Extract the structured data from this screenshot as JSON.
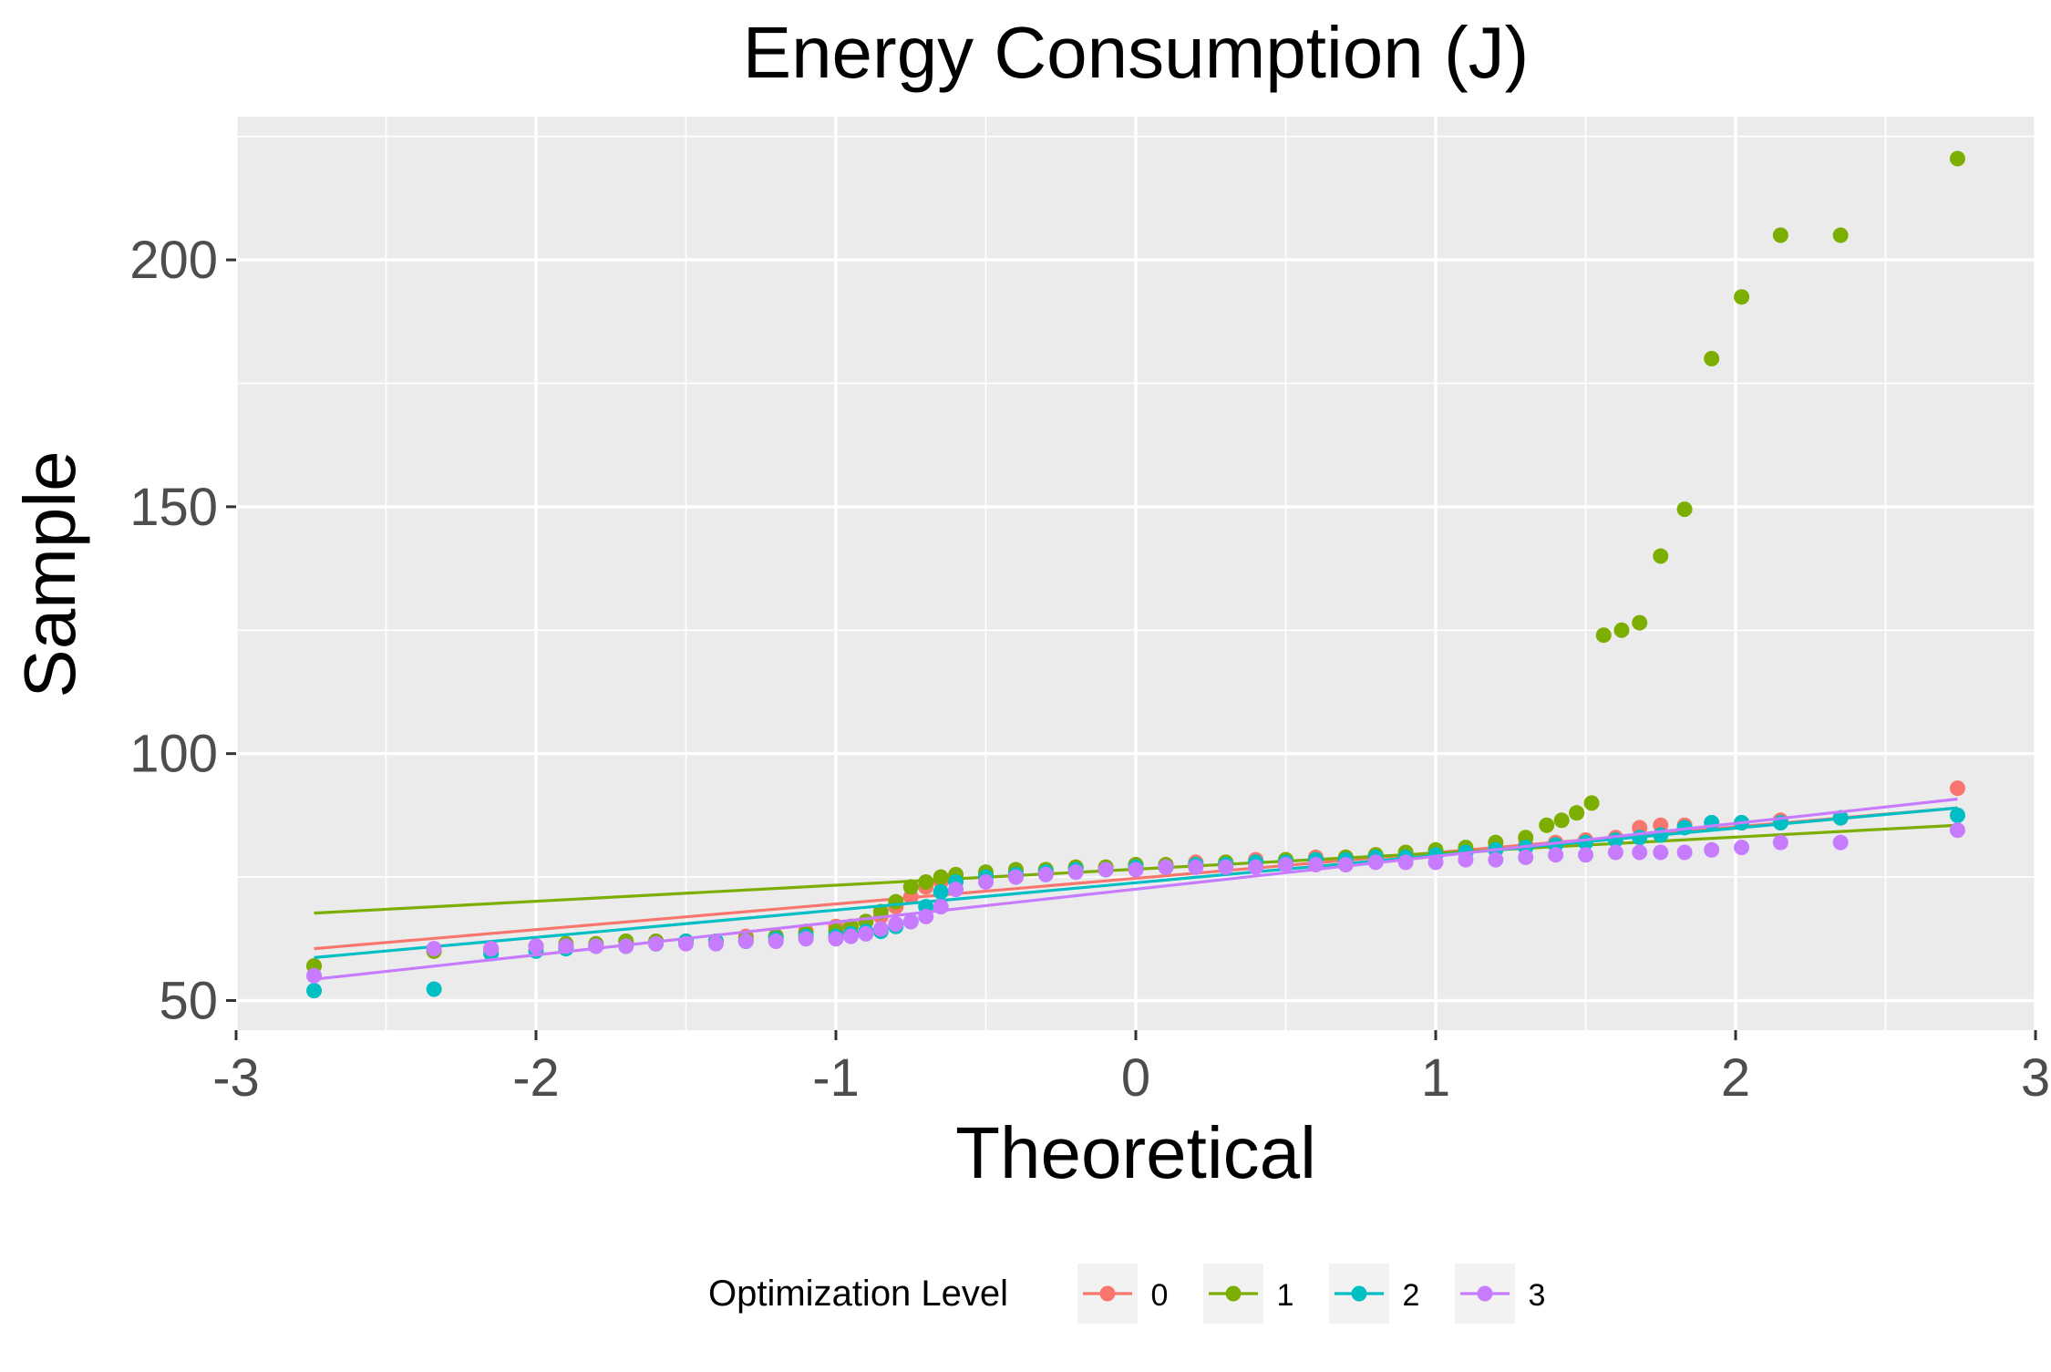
{
  "chart_data": {
    "type": "scatter",
    "title": "Energy Consumption (J)",
    "xlabel": "Theoretical",
    "ylabel": "Sample",
    "xlim": [
      -3,
      3
    ],
    "ylim": [
      44,
      229
    ],
    "x_ticks": [
      -3,
      -2,
      -1,
      0,
      1,
      2,
      3
    ],
    "y_ticks": [
      50,
      100,
      150,
      200
    ],
    "grid": true,
    "legend": {
      "title": "Optimization Level",
      "position": "bottom"
    },
    "series": [
      {
        "name": "0",
        "color": "#F8766D",
        "line": [
          [
            -2.74,
            60.5
          ],
          [
            2.74,
            89.0
          ]
        ],
        "points": [
          [
            -2.74,
            57
          ],
          [
            -2.34,
            60
          ],
          [
            -2.15,
            60
          ],
          [
            -2.0,
            61
          ],
          [
            -1.9,
            61
          ],
          [
            -1.8,
            61
          ],
          [
            -1.7,
            62
          ],
          [
            -1.6,
            62
          ],
          [
            -1.5,
            62
          ],
          [
            -1.4,
            62
          ],
          [
            -1.3,
            63
          ],
          [
            -1.2,
            63
          ],
          [
            -1.1,
            64
          ],
          [
            -1.0,
            65
          ],
          [
            -0.95,
            65
          ],
          [
            -0.9,
            66
          ],
          [
            -0.85,
            67
          ],
          [
            -0.8,
            69
          ],
          [
            -0.75,
            71
          ],
          [
            -0.7,
            73
          ],
          [
            -0.65,
            74
          ],
          [
            -0.6,
            75
          ],
          [
            -0.5,
            75.5
          ],
          [
            -0.4,
            76
          ],
          [
            -0.3,
            76.5
          ],
          [
            -0.2,
            77
          ],
          [
            -0.1,
            77
          ],
          [
            0.0,
            77.5
          ],
          [
            0.1,
            77.5
          ],
          [
            0.2,
            78
          ],
          [
            0.3,
            78
          ],
          [
            0.4,
            78.5
          ],
          [
            0.5,
            78.5
          ],
          [
            0.6,
            79
          ],
          [
            0.7,
            79
          ],
          [
            0.8,
            79.5
          ],
          [
            0.9,
            79.5
          ],
          [
            1.0,
            80
          ],
          [
            1.1,
            80.5
          ],
          [
            1.2,
            81
          ],
          [
            1.3,
            81.5
          ],
          [
            1.4,
            82
          ],
          [
            1.5,
            82.5
          ],
          [
            1.6,
            83
          ],
          [
            1.68,
            85
          ],
          [
            1.75,
            85.5
          ],
          [
            1.83,
            85.5
          ],
          [
            1.92,
            86
          ],
          [
            2.02,
            86
          ],
          [
            2.15,
            86.5
          ],
          [
            2.35,
            87
          ],
          [
            2.74,
            93
          ]
        ]
      },
      {
        "name": "1",
        "color": "#7CAE00",
        "line": [
          [
            -2.74,
            67.7
          ],
          [
            2.74,
            85.5
          ]
        ],
        "points": [
          [
            -2.74,
            57
          ],
          [
            -2.34,
            60
          ],
          [
            -2.15,
            60.5
          ],
          [
            -2.0,
            61
          ],
          [
            -1.9,
            61.5
          ],
          [
            -1.8,
            61.5
          ],
          [
            -1.7,
            62
          ],
          [
            -1.6,
            62
          ],
          [
            -1.5,
            62
          ],
          [
            -1.4,
            62
          ],
          [
            -1.3,
            62.5
          ],
          [
            -1.2,
            63
          ],
          [
            -1.1,
            63.5
          ],
          [
            -1.0,
            64
          ],
          [
            -0.95,
            65
          ],
          [
            -0.9,
            66
          ],
          [
            -0.85,
            68
          ],
          [
            -0.8,
            70
          ],
          [
            -0.75,
            73
          ],
          [
            -0.7,
            74
          ],
          [
            -0.65,
            75
          ],
          [
            -0.6,
            75.5
          ],
          [
            -0.5,
            76
          ],
          [
            -0.4,
            76.5
          ],
          [
            -0.3,
            76.5
          ],
          [
            -0.2,
            77
          ],
          [
            -0.1,
            77
          ],
          [
            0.0,
            77.5
          ],
          [
            0.1,
            77.5
          ],
          [
            0.2,
            77.5
          ],
          [
            0.3,
            78
          ],
          [
            0.4,
            78
          ],
          [
            0.5,
            78.5
          ],
          [
            0.6,
            78.5
          ],
          [
            0.7,
            79
          ],
          [
            0.8,
            79.5
          ],
          [
            0.9,
            80
          ],
          [
            1.0,
            80.5
          ],
          [
            1.1,
            81
          ],
          [
            1.2,
            82
          ],
          [
            1.3,
            83
          ],
          [
            1.37,
            85.5
          ],
          [
            1.42,
            86.5
          ],
          [
            1.47,
            88
          ],
          [
            1.52,
            90
          ],
          [
            1.56,
            124
          ],
          [
            1.62,
            125
          ],
          [
            1.68,
            126.5
          ],
          [
            1.75,
            140
          ],
          [
            1.83,
            149.5
          ],
          [
            1.92,
            180
          ],
          [
            2.02,
            192.5
          ],
          [
            2.15,
            205
          ],
          [
            2.35,
            205
          ],
          [
            2.74,
            220.5
          ]
        ]
      },
      {
        "name": "2",
        "color": "#00BFC4",
        "line": [
          [
            -2.74,
            58.7
          ],
          [
            2.74,
            89.0
          ]
        ],
        "points": [
          [
            -2.74,
            52
          ],
          [
            -2.34,
            52.3
          ],
          [
            -2.15,
            59.5
          ],
          [
            -2.0,
            60
          ],
          [
            -1.9,
            60.5
          ],
          [
            -1.8,
            61
          ],
          [
            -1.7,
            61
          ],
          [
            -1.6,
            61.5
          ],
          [
            -1.5,
            62
          ],
          [
            -1.4,
            62
          ],
          [
            -1.3,
            62
          ],
          [
            -1.2,
            62.5
          ],
          [
            -1.1,
            63
          ],
          [
            -1.0,
            63
          ],
          [
            -0.95,
            63.5
          ],
          [
            -0.9,
            64
          ],
          [
            -0.85,
            64
          ],
          [
            -0.8,
            65
          ],
          [
            -0.75,
            66
          ],
          [
            -0.7,
            69
          ],
          [
            -0.65,
            72
          ],
          [
            -0.6,
            74
          ],
          [
            -0.5,
            75
          ],
          [
            -0.4,
            75.5
          ],
          [
            -0.3,
            76
          ],
          [
            -0.2,
            76.5
          ],
          [
            -0.1,
            76.5
          ],
          [
            0.0,
            77
          ],
          [
            0.1,
            77
          ],
          [
            0.2,
            77.5
          ],
          [
            0.3,
            77.5
          ],
          [
            0.4,
            78
          ],
          [
            0.5,
            78
          ],
          [
            0.6,
            78.5
          ],
          [
            0.7,
            78.5
          ],
          [
            0.8,
            79
          ],
          [
            0.9,
            79
          ],
          [
            1.0,
            79.5
          ],
          [
            1.1,
            80
          ],
          [
            1.2,
            80.5
          ],
          [
            1.3,
            81
          ],
          [
            1.4,
            81.5
          ],
          [
            1.5,
            82
          ],
          [
            1.6,
            82.5
          ],
          [
            1.68,
            83
          ],
          [
            1.75,
            83.5
          ],
          [
            1.83,
            85
          ],
          [
            1.92,
            86
          ],
          [
            2.02,
            86
          ],
          [
            2.15,
            86
          ],
          [
            2.35,
            87
          ],
          [
            2.74,
            87.5
          ]
        ]
      },
      {
        "name": "3",
        "color": "#C77CFF",
        "line": [
          [
            -2.74,
            54.3
          ],
          [
            2.74,
            90.8
          ]
        ],
        "points": [
          [
            -2.74,
            55
          ],
          [
            -2.34,
            60.5
          ],
          [
            -2.15,
            60.5
          ],
          [
            -2.0,
            61
          ],
          [
            -1.9,
            61
          ],
          [
            -1.8,
            61
          ],
          [
            -1.7,
            61
          ],
          [
            -1.6,
            61.5
          ],
          [
            -1.5,
            61.5
          ],
          [
            -1.4,
            61.5
          ],
          [
            -1.3,
            62
          ],
          [
            -1.2,
            62
          ],
          [
            -1.1,
            62.5
          ],
          [
            -1.0,
            62.5
          ],
          [
            -0.95,
            63
          ],
          [
            -0.9,
            63.5
          ],
          [
            -0.85,
            64.5
          ],
          [
            -0.8,
            65.5
          ],
          [
            -0.75,
            66
          ],
          [
            -0.7,
            67
          ],
          [
            -0.65,
            69
          ],
          [
            -0.6,
            72.5
          ],
          [
            -0.5,
            74
          ],
          [
            -0.4,
            75
          ],
          [
            -0.3,
            75.5
          ],
          [
            -0.2,
            76
          ],
          [
            -0.1,
            76.5
          ],
          [
            0.0,
            76.5
          ],
          [
            0.1,
            77
          ],
          [
            0.2,
            77
          ],
          [
            0.3,
            77
          ],
          [
            0.4,
            77
          ],
          [
            0.5,
            77.5
          ],
          [
            0.6,
            77.5
          ],
          [
            0.7,
            77.5
          ],
          [
            0.8,
            78
          ],
          [
            0.9,
            78
          ],
          [
            1.0,
            78
          ],
          [
            1.1,
            78.5
          ],
          [
            1.2,
            78.5
          ],
          [
            1.3,
            79
          ],
          [
            1.4,
            79.5
          ],
          [
            1.5,
            79.5
          ],
          [
            1.6,
            80
          ],
          [
            1.68,
            80
          ],
          [
            1.75,
            80
          ],
          [
            1.83,
            80
          ],
          [
            1.92,
            80.5
          ],
          [
            2.02,
            81
          ],
          [
            2.15,
            82
          ],
          [
            2.35,
            82
          ],
          [
            2.74,
            84.5
          ]
        ]
      }
    ]
  }
}
